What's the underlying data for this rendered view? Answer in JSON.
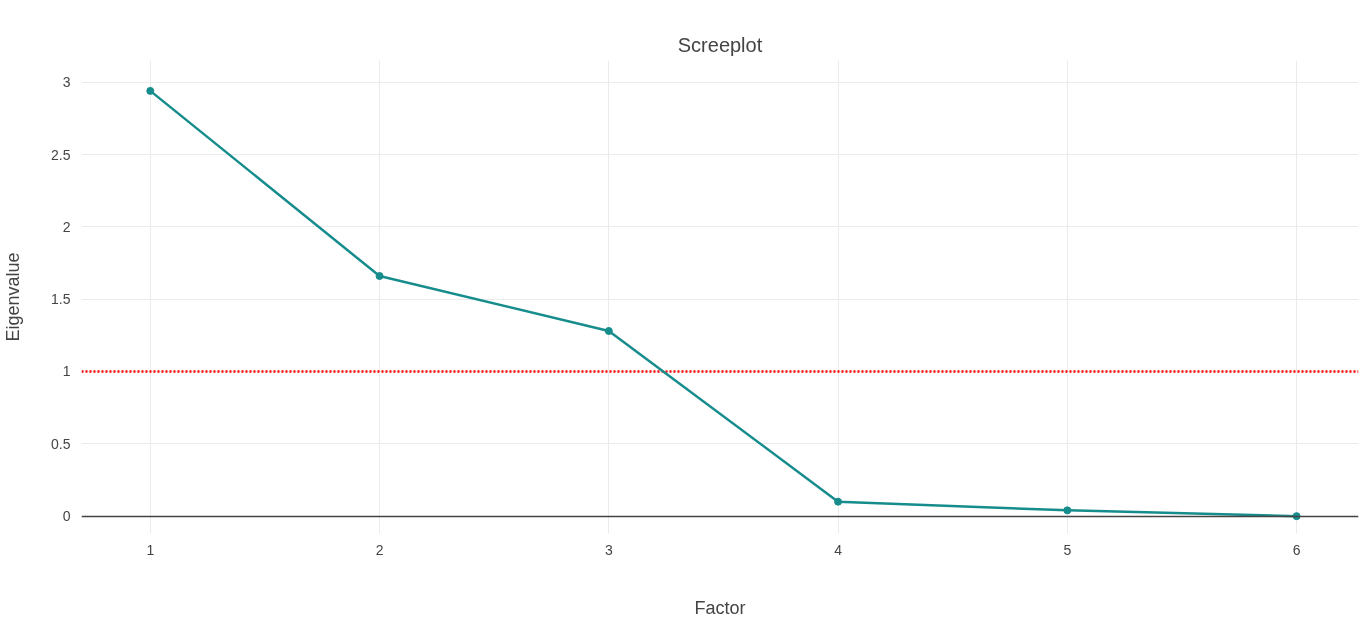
{
  "chart_data": {
    "type": "line",
    "title": "Screeplot",
    "xlabel": "Factor",
    "ylabel": "Eigenvalue",
    "x": [
      1,
      2,
      3,
      4,
      5,
      6
    ],
    "series": [
      {
        "color": "#168c8c",
        "values": [
          2.94,
          1.66,
          1.28,
          0.1,
          0.04,
          0.0
        ]
      }
    ],
    "xlim": [
      0.7,
      6.27
    ],
    "ylim": [
      -0.12,
      3.15
    ],
    "xticks": [
      1,
      2,
      3,
      4,
      5,
      6
    ],
    "yticks": [
      0,
      {
        "value": 0.5,
        "label": "0.5"
      },
      1,
      {
        "value": 1.5,
        "label": "1.5"
      },
      2,
      {
        "value": 2.5,
        "label": "2.5"
      },
      3
    ],
    "ref_lines": [
      {
        "axis": "y",
        "value": 1,
        "color": "#ff0000",
        "line_style": "dotted"
      }
    ],
    "grid": true,
    "marker": "circle",
    "line_style": "solid"
  }
}
